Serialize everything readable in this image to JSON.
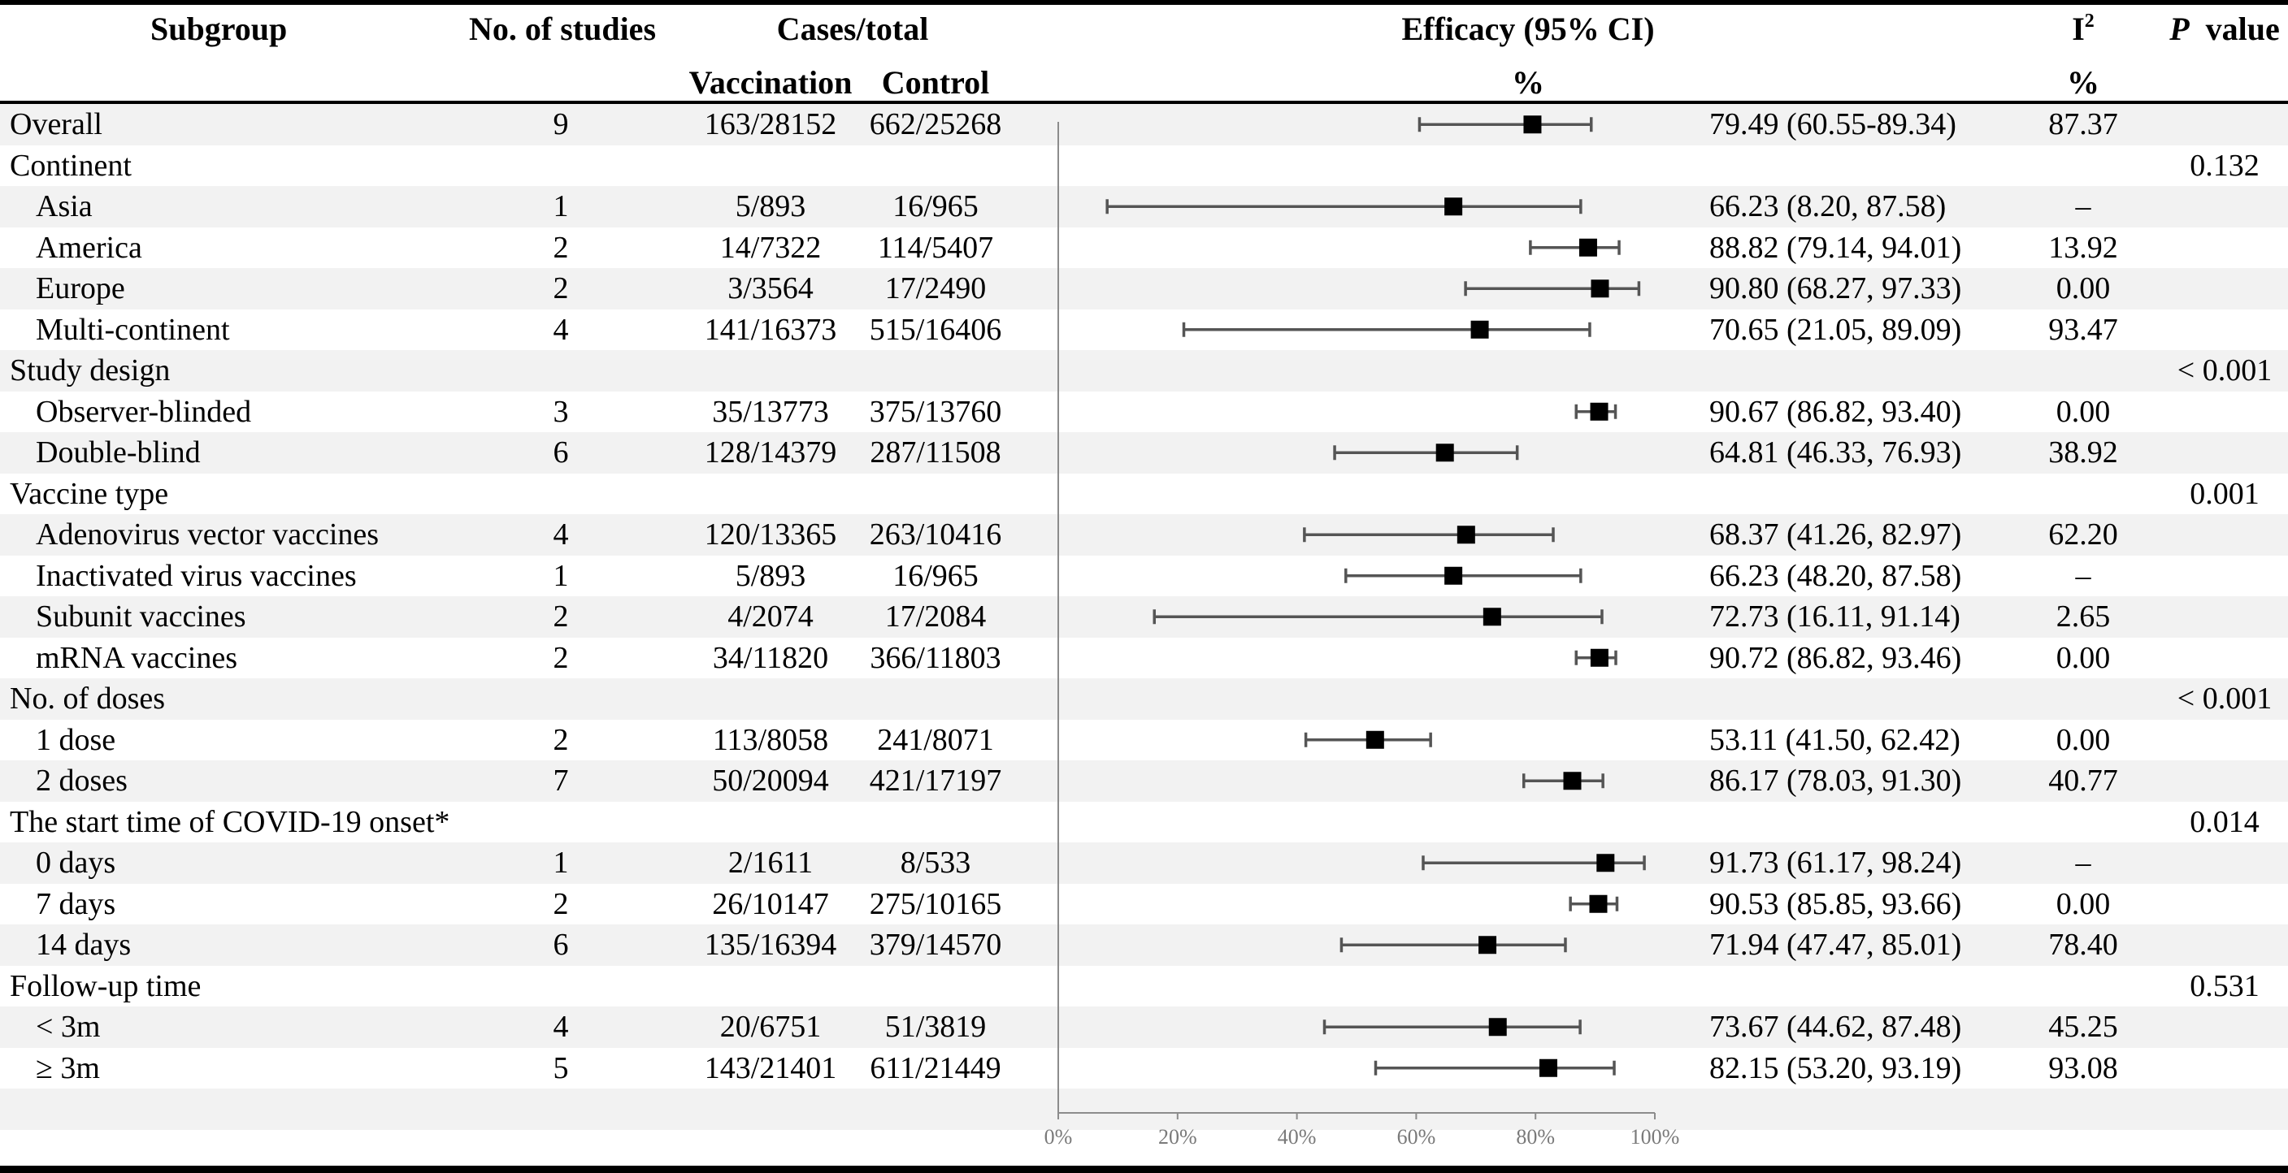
{
  "header": {
    "subgroup": "Subgroup",
    "studies": "No. of studies",
    "cases_total": "Cases/total",
    "vaccination": "Vaccination",
    "control": "Control",
    "efficacy": "Efficacy (95% CI)",
    "efficacy_unit": "%",
    "i2_letter": "I",
    "i2_sup": "2",
    "i2_unit": "%",
    "p_italic": "P",
    "p_text": "value"
  },
  "chart_data": {
    "type": "forest",
    "title": "Efficacy (95% CI)",
    "xlabel": "%",
    "xlim": [
      0,
      100
    ],
    "xticks": [
      "0%",
      "20%",
      "40%",
      "60%",
      "80%",
      "100%"
    ],
    "rows": [
      {
        "label": "Overall",
        "type": "item",
        "studies": "9",
        "vaccination": "163/28152",
        "control": "662/25268",
        "efficacy_text": "79.49 (60.55-89.34)",
        "i2": "87.37",
        "p": "",
        "est": 79.49,
        "lo": 60.55,
        "hi": 89.34
      },
      {
        "label": "Continent",
        "type": "group",
        "studies": "",
        "vaccination": "",
        "control": "",
        "efficacy_text": "",
        "i2": "",
        "p": "0.132"
      },
      {
        "label": "Asia",
        "type": "sub",
        "studies": "1",
        "vaccination": "5/893",
        "control": "16/965",
        "efficacy_text": "66.23 (8.20, 87.58)",
        "i2": "–",
        "p": "",
        "est": 66.23,
        "lo": 8.2,
        "hi": 87.58
      },
      {
        "label": "America",
        "type": "sub",
        "studies": "2",
        "vaccination": "14/7322",
        "control": "114/5407",
        "efficacy_text": "88.82 (79.14, 94.01)",
        "i2": "13.92",
        "p": "",
        "est": 88.82,
        "lo": 79.14,
        "hi": 94.01
      },
      {
        "label": "Europe",
        "type": "sub",
        "studies": "2",
        "vaccination": "3/3564",
        "control": "17/2490",
        "efficacy_text": "90.80 (68.27, 97.33)",
        "i2": "0.00",
        "p": "",
        "est": 90.8,
        "lo": 68.27,
        "hi": 97.33
      },
      {
        "label": "Multi-continent",
        "type": "sub",
        "studies": "4",
        "vaccination": "141/16373",
        "control": "515/16406",
        "efficacy_text": "70.65 (21.05, 89.09)",
        "i2": "93.47",
        "p": "",
        "est": 70.65,
        "lo": 21.05,
        "hi": 89.09
      },
      {
        "label": "Study design",
        "type": "group",
        "studies": "",
        "vaccination": "",
        "control": "",
        "efficacy_text": "",
        "i2": "",
        "p": "< 0.001"
      },
      {
        "label": "Observer-blinded",
        "type": "sub",
        "studies": "3",
        "vaccination": "35/13773",
        "control": "375/13760",
        "efficacy_text": "90.67 (86.82, 93.40)",
        "i2": "0.00",
        "p": "",
        "est": 90.67,
        "lo": 86.82,
        "hi": 93.4
      },
      {
        "label": "Double-blind",
        "type": "sub",
        "studies": "6",
        "vaccination": "128/14379",
        "control": "287/11508",
        "efficacy_text": "64.81 (46.33, 76.93)",
        "i2": "38.92",
        "p": "",
        "est": 64.81,
        "lo": 46.33,
        "hi": 76.93
      },
      {
        "label": "Vaccine type",
        "type": "group",
        "studies": "",
        "vaccination": "",
        "control": "",
        "efficacy_text": "",
        "i2": "",
        "p": "0.001"
      },
      {
        "label": "Adenovirus vector vaccines",
        "type": "sub",
        "studies": "4",
        "vaccination": "120/13365",
        "control": "263/10416",
        "efficacy_text": "68.37 (41.26, 82.97)",
        "i2": "62.20",
        "p": "",
        "est": 68.37,
        "lo": 41.26,
        "hi": 82.97
      },
      {
        "label": "Inactivated virus vaccines",
        "type": "sub",
        "studies": "1",
        "vaccination": "5/893",
        "control": "16/965",
        "efficacy_text": "66.23 (48.20, 87.58)",
        "i2": "–",
        "p": "",
        "est": 66.23,
        "lo": 48.2,
        "hi": 87.58
      },
      {
        "label": "Subunit vaccines",
        "type": "sub",
        "studies": "2",
        "vaccination": "4/2074",
        "control": "17/2084",
        "efficacy_text": "72.73 (16.11, 91.14)",
        "i2": "2.65",
        "p": "",
        "est": 72.73,
        "lo": 16.11,
        "hi": 91.14
      },
      {
        "label": "mRNA vaccines",
        "type": "sub",
        "studies": "2",
        "vaccination": "34/11820",
        "control": "366/11803",
        "efficacy_text": "90.72 (86.82, 93.46)",
        "i2": "0.00",
        "p": "",
        "est": 90.72,
        "lo": 86.82,
        "hi": 93.46
      },
      {
        "label": "No. of doses",
        "type": "group",
        "studies": "",
        "vaccination": "",
        "control": "",
        "efficacy_text": "",
        "i2": "",
        "p": "< 0.001"
      },
      {
        "label": "1 dose",
        "type": "sub",
        "studies": "2",
        "vaccination": "113/8058",
        "control": "241/8071",
        "efficacy_text": "53.11 (41.50, 62.42)",
        "i2": "0.00",
        "p": "",
        "est": 53.11,
        "lo": 41.5,
        "hi": 62.42
      },
      {
        "label": "2 doses",
        "type": "sub",
        "studies": "7",
        "vaccination": "50/20094",
        "control": "421/17197",
        "efficacy_text": "86.17 (78.03, 91.30)",
        "i2": "40.77",
        "p": "",
        "est": 86.17,
        "lo": 78.03,
        "hi": 91.3
      },
      {
        "label": "The start time of COVID-19 onset*",
        "type": "group",
        "studies": "",
        "vaccination": "",
        "control": "",
        "efficacy_text": "",
        "i2": "",
        "p": "0.014"
      },
      {
        "label": "0 days",
        "type": "sub",
        "studies": "1",
        "vaccination": "2/1611",
        "control": "8/533",
        "efficacy_text": "91.73 (61.17, 98.24)",
        "i2": "–",
        "p": "",
        "est": 91.73,
        "lo": 61.17,
        "hi": 98.24
      },
      {
        "label": "7 days",
        "type": "sub",
        "studies": "2",
        "vaccination": "26/10147",
        "control": "275/10165",
        "efficacy_text": "90.53 (85.85, 93.66)",
        "i2": "0.00",
        "p": "",
        "est": 90.53,
        "lo": 85.85,
        "hi": 93.66
      },
      {
        "label": "14 days",
        "type": "sub",
        "studies": "6",
        "vaccination": "135/16394",
        "control": "379/14570",
        "efficacy_text": "71.94 (47.47, 85.01)",
        "i2": "78.40",
        "p": "",
        "est": 71.94,
        "lo": 47.47,
        "hi": 85.01
      },
      {
        "label": "Follow-up time",
        "type": "group",
        "studies": "",
        "vaccination": "",
        "control": "",
        "efficacy_text": "",
        "i2": "",
        "p": "0.531"
      },
      {
        "label": "< 3m",
        "type": "sub",
        "studies": "4",
        "vaccination": "20/6751",
        "control": "51/3819",
        "efficacy_text": "73.67 (44.62, 87.48)",
        "i2": "45.25",
        "p": "",
        "est": 73.67,
        "lo": 44.62,
        "hi": 87.48
      },
      {
        "label": "≥ 3m",
        "type": "sub",
        "studies": "5",
        "vaccination": "143/21401",
        "control": "611/21449",
        "efficacy_text": "82.15 (53.20, 93.19)",
        "i2": "93.08",
        "p": "",
        "est": 82.15,
        "lo": 53.2,
        "hi": 93.19
      }
    ]
  }
}
